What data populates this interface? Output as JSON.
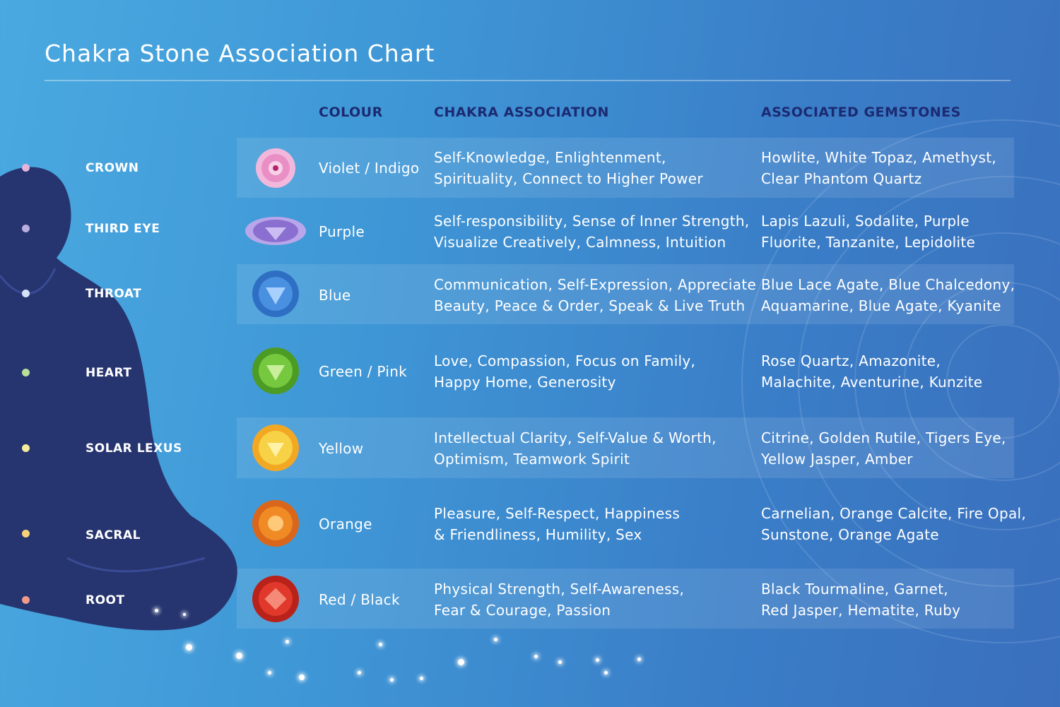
{
  "title": "Chakra Stone Association Chart",
  "headers": {
    "colour": "COLOUR",
    "association": "CHAKRA ASSOCIATION",
    "gemstones": "ASSOCIATED GEMSTONES"
  },
  "rows": [
    {
      "name": "CROWN",
      "colour": "Violet / Indigo",
      "assoc1": "Self-Knowledge, Enlightenment,",
      "assoc2": "Spirituality, Connect to Higher Power",
      "gems1": "Howlite, White Topaz, Amethyst,",
      "gems2": "Clear Phantom Quartz",
      "dot_color": "#e6b3dd",
      "stone_color": "#e98fc6",
      "stone_icon": "lotus-icon"
    },
    {
      "name": "THIRD EYE",
      "colour": "Purple",
      "assoc1": "Self-responsibility, Sense of Inner Strength,",
      "assoc2": "Visualize Creatively, Calmness, Intuition",
      "gems1": "Lapis Lazuli, Sodalite, Purple",
      "gems2": "Fluorite, Tanzanite, Lepidolite",
      "dot_color": "#b9aee0",
      "stone_color": "#8a6fd0",
      "stone_icon": "third-eye-icon"
    },
    {
      "name": "THROAT",
      "colour": "Blue",
      "assoc1": "Communication, Self-Expression, Appreciate",
      "assoc2": "Beauty, Peace & Order, Speak & Live Truth",
      "gems1": "Blue Lace Agate, Blue Chalcedony,",
      "gems2": "Aquamarine, Blue Agate, Kyanite",
      "dot_color": "#d5e3f7",
      "stone_color": "#3f84d8",
      "stone_icon": "throat-chakra-icon"
    },
    {
      "name": "HEART",
      "colour": "Green / Pink",
      "assoc1": "Love, Compassion, Focus on Family,",
      "assoc2": "Happy Home, Generosity",
      "gems1": "Rose Quartz, Amazonite,",
      "gems2": "Malachite, Aventurine, Kunzite",
      "dot_color": "#b8df9a",
      "stone_color": "#6fc23c",
      "stone_icon": "heart-chakra-icon"
    },
    {
      "name": "SOLAR LEXUS",
      "colour": "Yellow",
      "assoc1": "Intellectual Clarity, Self-Value & Worth,",
      "assoc2": "Optimism, Teamwork Spirit",
      "gems1": "Citrine, Golden Rutile, Tigers Eye,",
      "gems2": "Yellow Jasper, Amber",
      "dot_color": "#f5ec9c",
      "stone_color": "#f6c52e",
      "stone_icon": "solar-plexus-icon"
    },
    {
      "name": "SACRAL",
      "colour": "Orange",
      "assoc1": "Pleasure, Self-Respect, Happiness",
      "assoc2": "& Friendliness, Humility, Sex",
      "gems1": "Carnelian, Orange Calcite, Fire Opal,",
      "gems2": "Sunstone, Orange Agate",
      "dot_color": "#f6d37a",
      "stone_color": "#f08a24",
      "stone_icon": "sacral-chakra-icon"
    },
    {
      "name": "ROOT",
      "colour": "Red / Black",
      "assoc1": "Physical Strength, Self-Awareness,",
      "assoc2": "Fear & Courage, Passion",
      "gems1": "Black Tourmaline, Garnet,",
      "gems2": "Red Jasper, Hematite, Ruby",
      "dot_color": "#f09a8a",
      "stone_color": "#e0392b",
      "stone_icon": "root-chakra-icon"
    }
  ],
  "colors": {
    "header_text": "#1c2a72",
    "figure": "#26346f",
    "background_start": "#4aa9e0",
    "background_end": "#3a6fbd"
  }
}
